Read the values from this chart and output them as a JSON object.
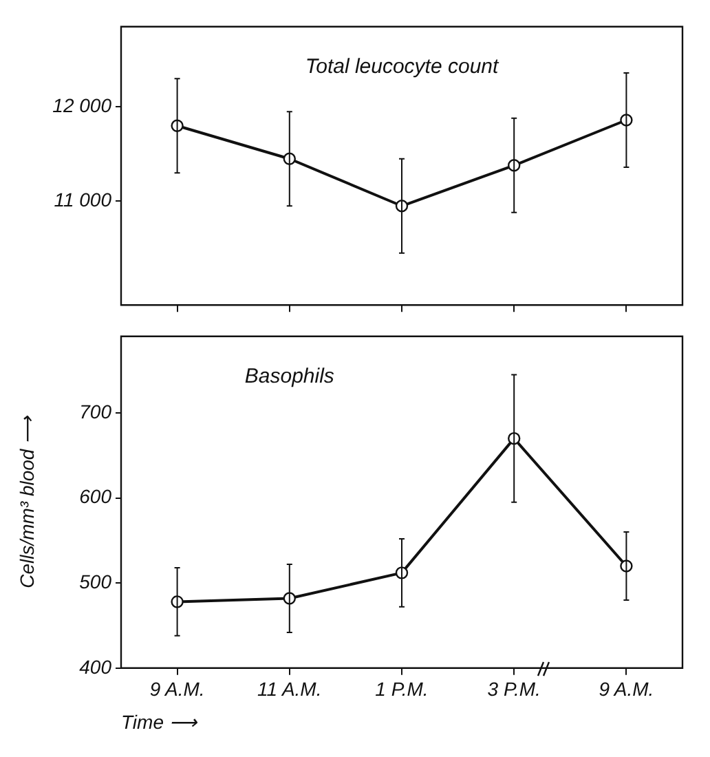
{
  "chart_data": [
    {
      "type": "line",
      "title": "Total leucocyte count",
      "categories": [
        null,
        null,
        null,
        null,
        null
      ],
      "series": [
        {
          "color": "#111111",
          "values": [
            11800,
            11450,
            10950,
            11380,
            11860
          ],
          "errors": [
            500,
            500,
            500,
            500,
            500
          ]
        }
      ],
      "ylim": [
        9900,
        12850
      ],
      "yticks": [
        {
          "value": 11000,
          "label": "11 000"
        },
        {
          "value": 12000,
          "label": "12 000"
        }
      ],
      "tick_labels": "y",
      "grid": false,
      "legend": false,
      "marker": "circle",
      "line_style": "solid"
    },
    {
      "type": "line",
      "title": "Basophils",
      "xlabel": "Time ⟶",
      "ylabel": "Cells/mm³ blood ⟶",
      "categories": [
        "9 A.M.",
        "11 A.M.",
        "1 P.M.",
        "3 P.M.",
        "9 A.M."
      ],
      "series": [
        {
          "color": "#111111",
          "values": [
            478,
            482,
            512,
            670,
            520
          ],
          "errors": [
            40,
            40,
            40,
            75,
            40
          ]
        }
      ],
      "ylim": [
        400,
        790
      ],
      "yticks": [
        400,
        500,
        600,
        700
      ],
      "grid": false,
      "legend": false,
      "marker": "circle",
      "line_style": "solid"
    }
  ]
}
